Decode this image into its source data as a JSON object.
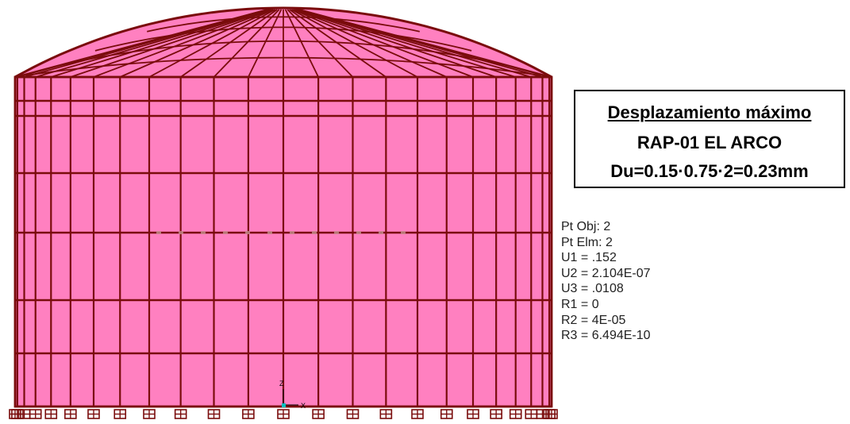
{
  "colors": {
    "shell_fill": "#ff80c0",
    "frame_line": "#7a0c0c",
    "support": "#7a0c0c",
    "axis_marker": "#00c0c0",
    "readout_text": "#222222"
  },
  "info_box": {
    "title": "Desplazamiento máximo",
    "subtitle": "RAP-01 EL ARCO",
    "formula": "Du=0.15·0.75·2=0.23mm"
  },
  "point_info": [
    {
      "label": "Pt Obj:",
      "value": "2"
    },
    {
      "label": "Pt Elm:",
      "value": "2"
    },
    {
      "label": "U1 =",
      "value": ".152"
    },
    {
      "label": "U2 =",
      "value": "2.104E-07"
    },
    {
      "label": "U3 =",
      "value": ".0108"
    },
    {
      "label": "R1 =",
      "value": "0"
    },
    {
      "label": "R2 =",
      "value": "4E-05"
    },
    {
      "label": "R3 =",
      "value": "6.494E-10"
    }
  ],
  "axes": {
    "z": "Z",
    "x": "X"
  }
}
